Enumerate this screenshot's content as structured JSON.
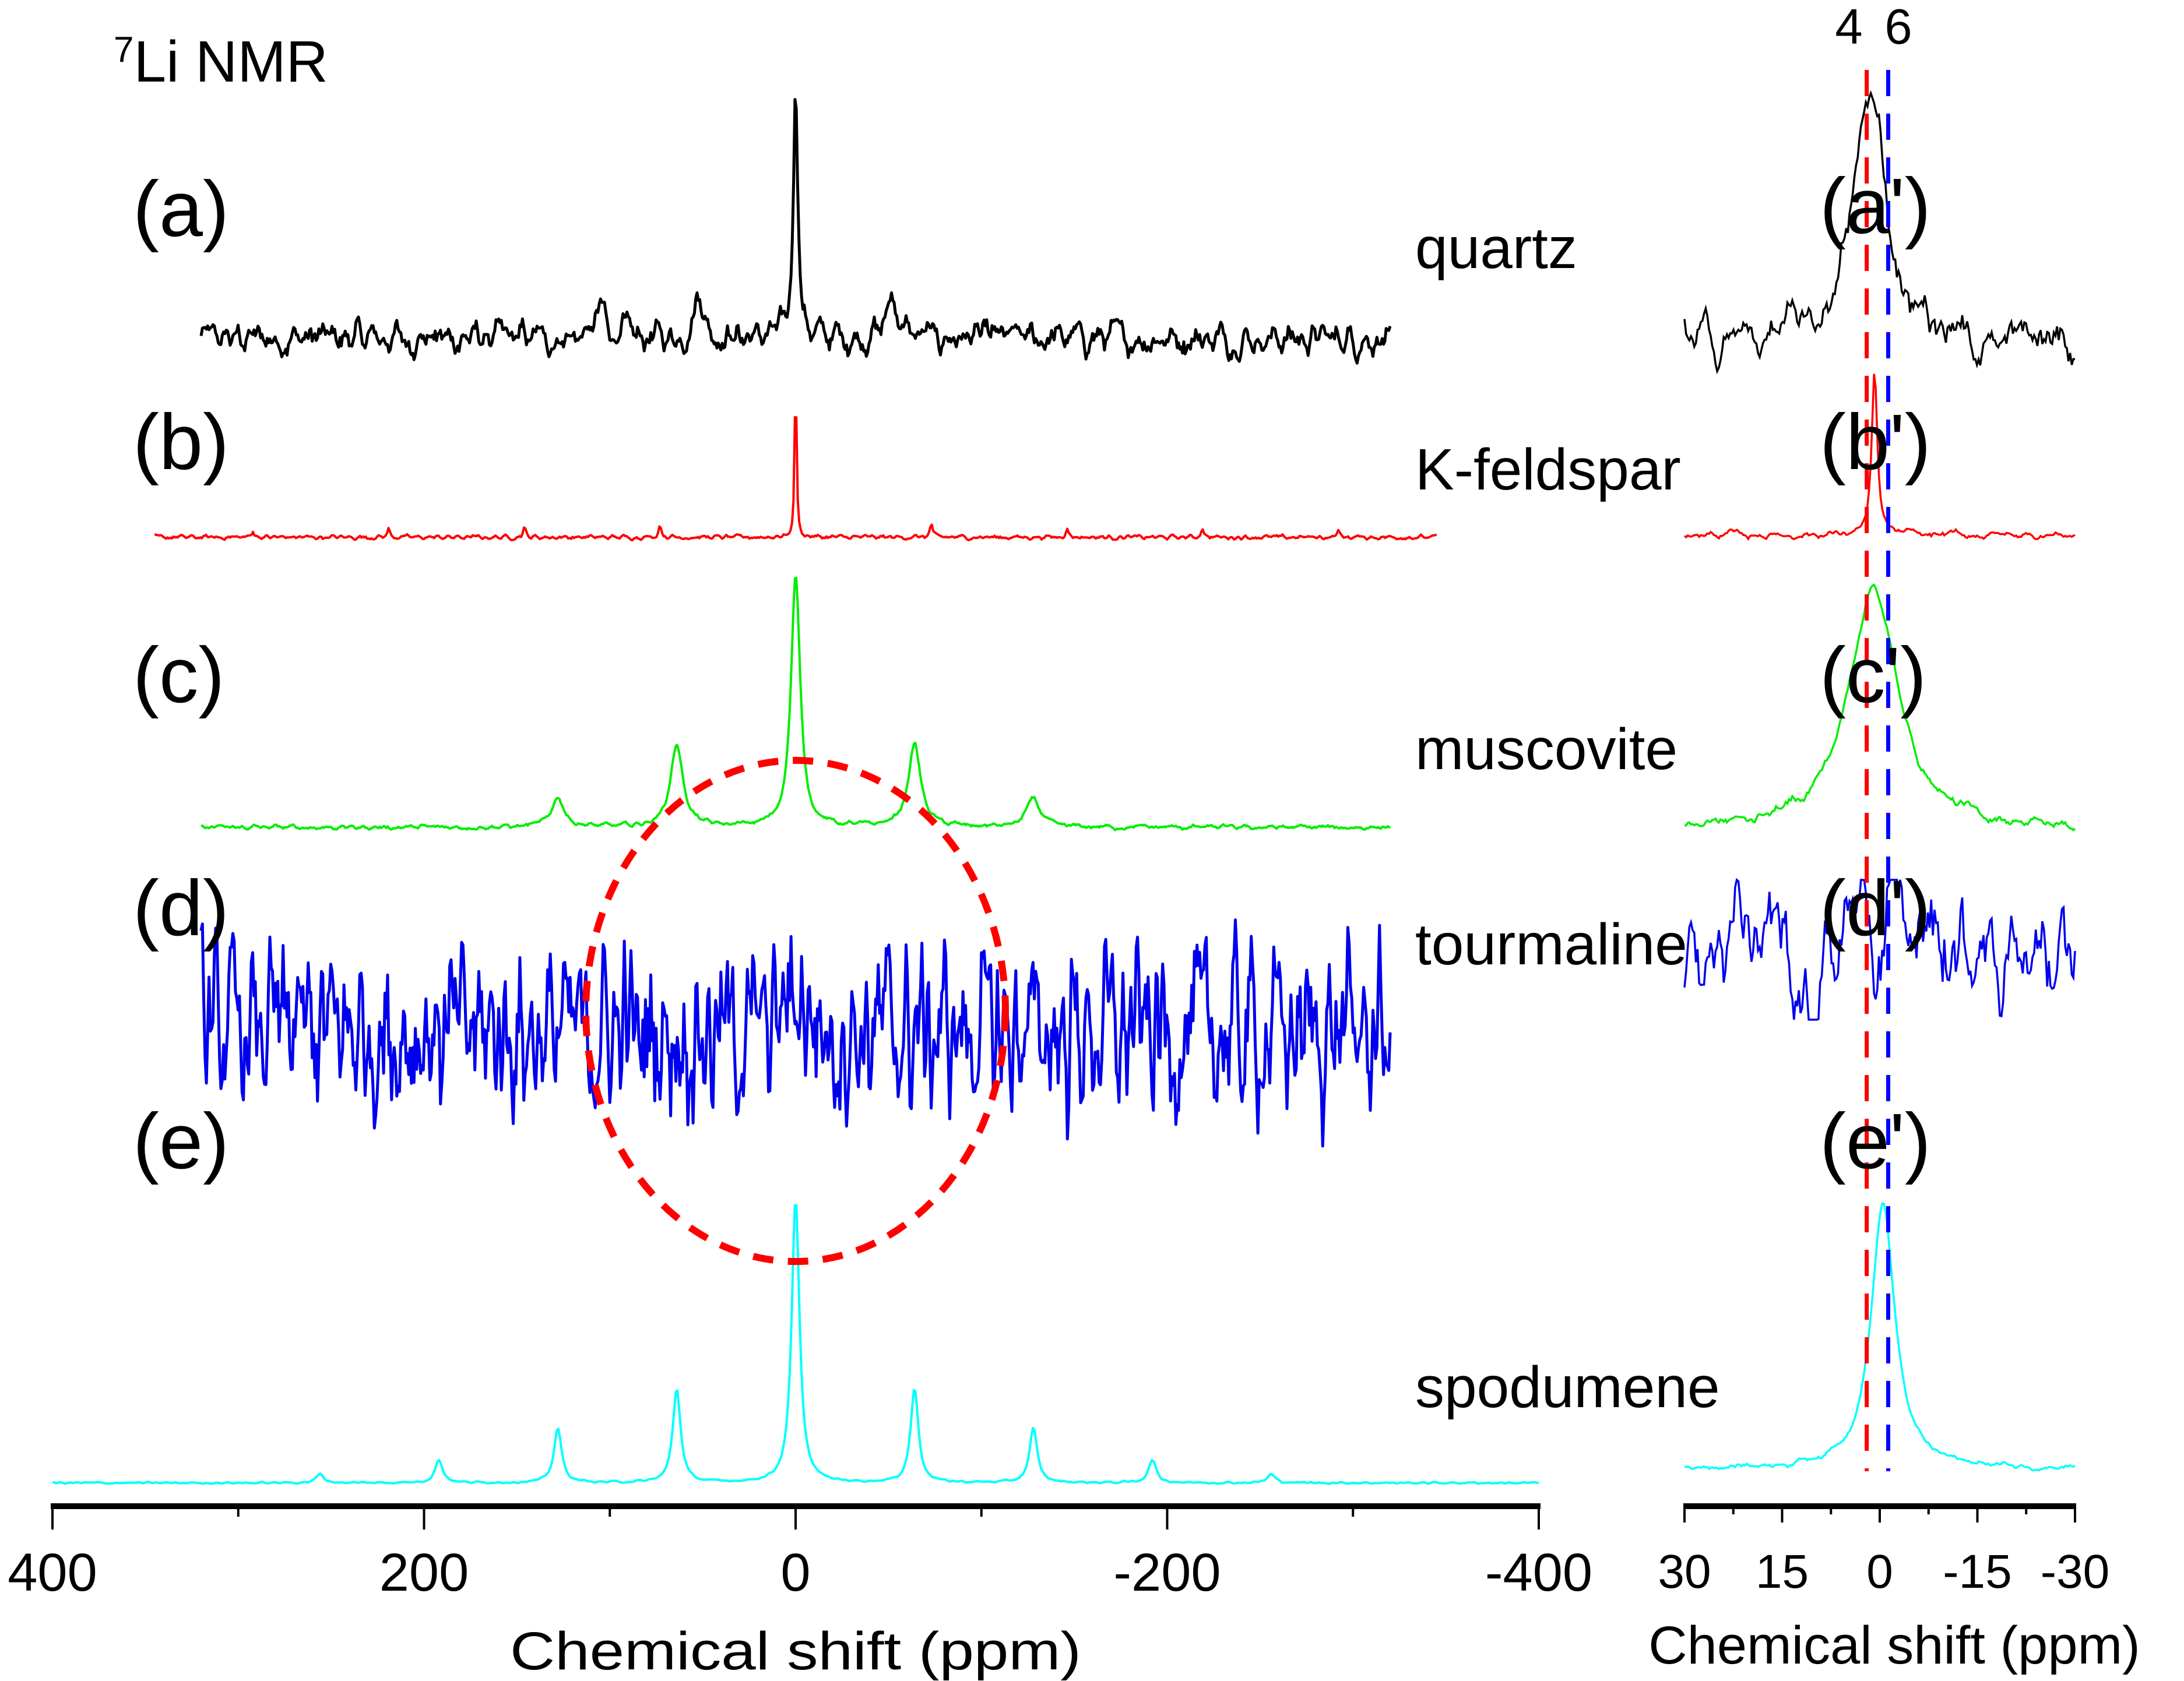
{
  "chart_data": [
    {
      "type": "line",
      "title": "7Li NMR",
      "title_superscript": "7",
      "title_main": "Li NMR",
      "xlabel": "Chemical shift (ppm)",
      "ylabel": "",
      "xlim": [
        400,
        -400
      ],
      "x_ticks": [
        400,
        200,
        0,
        -200,
        -400
      ],
      "x_tick_labels": [
        "400",
        "200",
        "0",
        "-200",
        "-400"
      ],
      "x_minor_ticks": [
        300,
        100,
        -100,
        -300
      ],
      "grid": false,
      "series": [
        {
          "name": "quartz",
          "panel": "(a)",
          "color": "#000000",
          "x_range": [
            320,
            -320
          ],
          "noise": 0.13,
          "peaks": [
            {
              "x": 0,
              "h": 1.0,
              "w": 1.5
            },
            {
              "x": 52,
              "h": 0.18,
              "w": 3
            },
            {
              "x": -52,
              "h": 0.18,
              "w": 3
            },
            {
              "x": 104,
              "h": 0.12,
              "w": 3
            }
          ]
        },
        {
          "name": "K-feldspar",
          "panel": "(b)",
          "color": "#ff0000",
          "x_range": [
            345,
            -345
          ],
          "noise": 0.02,
          "peaks": [
            {
              "x": 0,
              "h": 1.0,
              "w": 0.6
            },
            {
              "x": 73,
              "h": 0.08,
              "w": 0.8
            },
            {
              "x": -73,
              "h": 0.08,
              "w": 0.8
            },
            {
              "x": 146,
              "h": 0.06,
              "w": 0.8
            },
            {
              "x": -146,
              "h": 0.06,
              "w": 0.8
            },
            {
              "x": 219,
              "h": 0.05,
              "w": 0.8
            },
            {
              "x": -219,
              "h": 0.06,
              "w": 0.8
            },
            {
              "x": 292,
              "h": 0.04,
              "w": 0.8
            },
            {
              "x": -292,
              "h": 0.04,
              "w": 0.8
            }
          ]
        },
        {
          "name": "muscovite",
          "panel": "(c)",
          "color": "#00ee00",
          "x_range": [
            320,
            -320
          ],
          "noise": 0.02,
          "peaks": [
            {
              "x": 0,
              "h": 1.0,
              "w": 3
            },
            {
              "x": 64,
              "h": 0.33,
              "w": 4
            },
            {
              "x": -64,
              "h": 0.33,
              "w": 4
            },
            {
              "x": 128,
              "h": 0.12,
              "w": 4
            },
            {
              "x": -128,
              "h": 0.12,
              "w": 4
            }
          ]
        },
        {
          "name": "tourmaline",
          "panel": "(d)",
          "color": "#0000ee",
          "x_range": [
            320,
            -320
          ],
          "noise": 0.55,
          "peaks": []
        },
        {
          "name": "spodumene",
          "panel": "(e)",
          "color": "#00ffff",
          "x_range": [
            400,
            -400
          ],
          "noise": 0.005,
          "peaks": [
            {
              "x": 0,
              "h": 1.0,
              "w": 2.5
            },
            {
              "x": 64,
              "h": 0.33,
              "w": 2.5
            },
            {
              "x": -64,
              "h": 0.33,
              "w": 2.5
            },
            {
              "x": 128,
              "h": 0.19,
              "w": 2.5
            },
            {
              "x": -128,
              "h": 0.19,
              "w": 2.5
            },
            {
              "x": 192,
              "h": 0.08,
              "w": 2.5
            },
            {
              "x": -192,
              "h": 0.08,
              "w": 2.5
            },
            {
              "x": 256,
              "h": 0.03,
              "w": 2.5
            },
            {
              "x": -256,
              "h": 0.03,
              "w": 2.5
            }
          ]
        }
      ],
      "annotations": [
        {
          "type": "dashed-ellipse",
          "color": "#ff0000",
          "center_x": 0,
          "series": "tourmaline"
        }
      ]
    },
    {
      "type": "line",
      "title": "",
      "xlabel": "Chemical shift (ppm)",
      "xlim": [
        30,
        -30
      ],
      "x_ticks": [
        30,
        15,
        0,
        -15,
        -30
      ],
      "x_tick_labels": [
        "30",
        "15",
        "0",
        "-15",
        "-30"
      ],
      "x_minor_ticks": [
        22.5,
        7.5,
        -7.5,
        -22.5
      ],
      "grid": false,
      "reference_lines": [
        {
          "label": "4",
          "x": 2.0,
          "color": "#ff0000",
          "style": "dashed"
        },
        {
          "label": "6",
          "x": -1.3,
          "color": "#0000ff",
          "style": "dashed"
        }
      ],
      "series": [
        {
          "name": "quartz",
          "panel": "(a')",
          "color": "#000000",
          "peak_x": 1.5
        },
        {
          "name": "K-feldspar",
          "panel": "(b')",
          "color": "#ff0000",
          "peak_x": 0.8
        },
        {
          "name": "muscovite",
          "panel": "(c')",
          "color": "#00ee00",
          "peak_x": 1.0
        },
        {
          "name": "tourmaline",
          "panel": "(d')",
          "color": "#0000ee",
          "peak_x": 4.0
        },
        {
          "name": "spodumene",
          "panel": "(e')",
          "color": "#00ffff",
          "peak_x": -0.5
        }
      ]
    }
  ]
}
